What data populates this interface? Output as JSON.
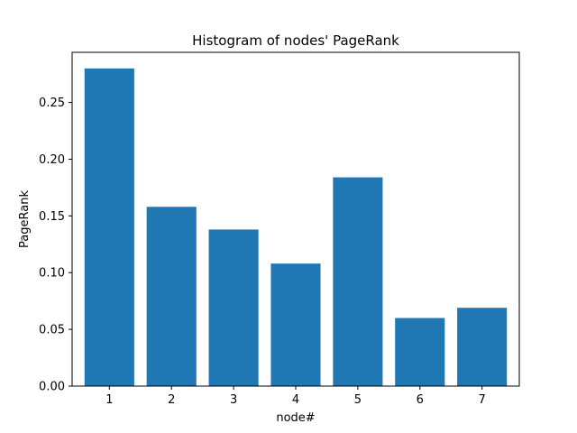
{
  "chart_data": {
    "type": "bar",
    "title": "Histogram of nodes' PageRank",
    "xlabel": "node#",
    "ylabel": "PageRank",
    "categories": [
      "1",
      "2",
      "3",
      "4",
      "5",
      "6",
      "7"
    ],
    "values": [
      0.28,
      0.158,
      0.138,
      0.108,
      0.184,
      0.06,
      0.069
    ],
    "ylim": [
      0,
      0.2942
    ],
    "yticks": [
      0.0,
      0.05,
      0.1,
      0.15,
      0.2,
      0.25
    ],
    "ytick_labels": [
      "0.00",
      "0.05",
      "0.10",
      "0.15",
      "0.20",
      "0.25"
    ],
    "bar_color": "#1f77b4",
    "grid": false,
    "legend": "none"
  }
}
